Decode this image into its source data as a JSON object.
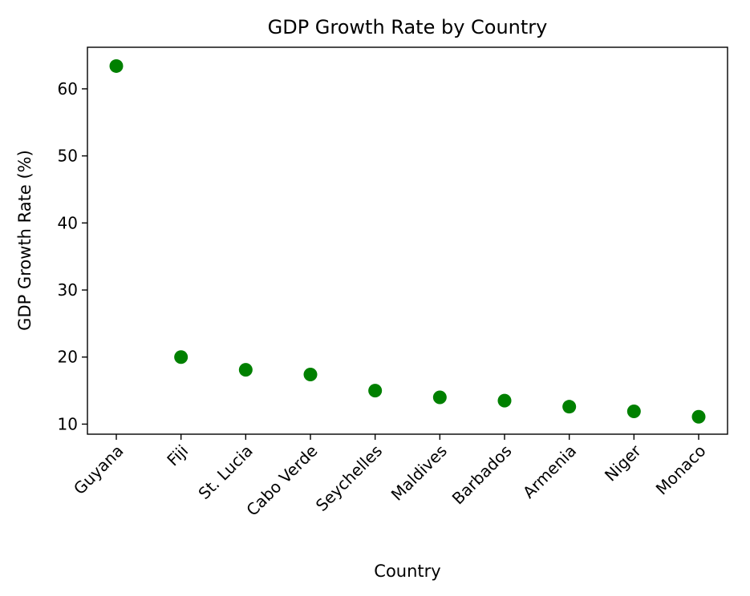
{
  "chart_data": {
    "type": "scatter",
    "title": "GDP Growth Rate by Country",
    "xlabel": "Country",
    "ylabel": "GDP Growth Rate (%)",
    "categories": [
      "Guyana",
      "Fiji",
      "St. Lucia",
      "Cabo Verde",
      "Seychelles",
      "Maldives",
      "Barbados",
      "Armenia",
      "Niger",
      "Monaco"
    ],
    "values": [
      63.4,
      20.0,
      18.1,
      17.4,
      15.0,
      14.0,
      13.5,
      12.6,
      11.9,
      11.1
    ],
    "ylim": [
      8.5,
      66.2
    ],
    "yticks": [
      10,
      20,
      30,
      40,
      50,
      60
    ],
    "grid": false,
    "legend": "none",
    "marker_color": "#008000"
  }
}
